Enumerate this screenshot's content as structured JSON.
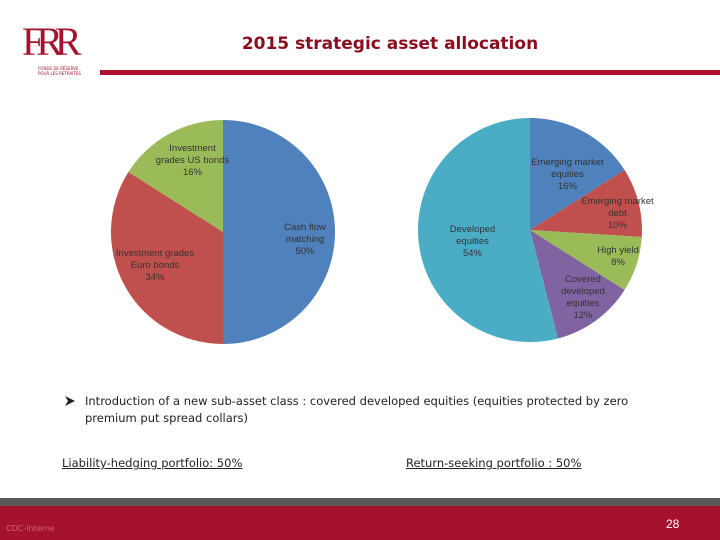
{
  "header": {
    "logo": "FRR",
    "logo_caption": "FONDS DE RÉSERVE POUR LES RETRAITES",
    "title": "2015 strategic asset allocation"
  },
  "chart_data": [
    {
      "type": "pie",
      "categories": [
        "Cash flow matching",
        "Investment grades Euro bonds",
        "Investment grades US bonds"
      ],
      "values": [
        50,
        34,
        16
      ],
      "value_labels": [
        "50%",
        "34%",
        "16%"
      ],
      "colors": [
        "#4f81bd",
        "#c0504d",
        "#9bbb59"
      ]
    },
    {
      "type": "pie",
      "categories": [
        "Emerging market equities",
        "Emerging market debt",
        "High yield",
        "Covered developed equities",
        "Developed equities"
      ],
      "values": [
        16,
        10,
        8,
        12,
        54
      ],
      "value_labels": [
        "16%",
        "10%",
        "8%",
        "12%",
        "54%"
      ],
      "colors": [
        "#4f81bd",
        "#c0504d",
        "#9bbb59",
        "#8064a2",
        "#4bacc6"
      ]
    }
  ],
  "bullet": "Introduction of a new sub-asset class : covered developed equities (equities protected by zero premium put spread collars)",
  "portfolios": [
    "Liability-hedging portfolio: 50%",
    "Return-seeking portfolio : 50%"
  ],
  "footer": {
    "note": "CDC-Interne",
    "page": "28"
  }
}
